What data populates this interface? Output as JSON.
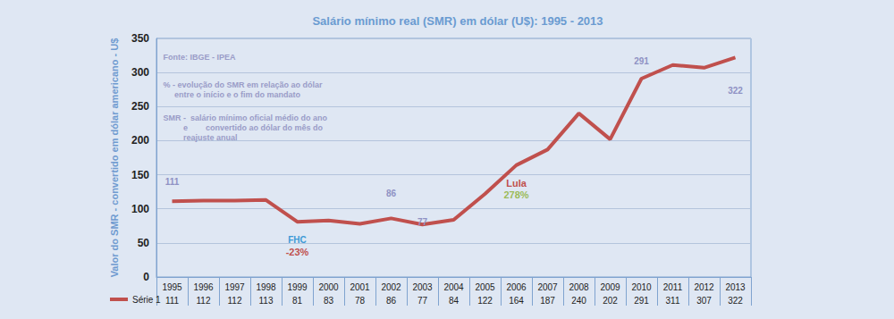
{
  "chart_data": {
    "type": "line",
    "title": "Salário mínimo real (SMR) em dólar (U$): 1995 - 2013",
    "y_label": "Valor do SMR - convertido em dólar americano - U$",
    "categories": [
      "1995",
      "1996",
      "1997",
      "1998",
      "1999",
      "2000",
      "2001",
      "2002",
      "2003",
      "2004",
      "2005",
      "2006",
      "2007",
      "2008",
      "2009",
      "2010",
      "2011",
      "2012",
      "2013"
    ],
    "series": [
      {
        "name": "Série 1",
        "color": "#c0504d",
        "marker": "none",
        "values": [
          111,
          112,
          112,
          113,
          81,
          83,
          78,
          86,
          77,
          84,
          122,
          164,
          187,
          240,
          202,
          291,
          311,
          307,
          322
        ]
      }
    ],
    "ylim": [
      0,
      350
    ],
    "yticks": [
      0,
      50,
      100,
      150,
      200,
      250,
      300,
      350
    ],
    "grid": true,
    "legend": "bottom-left",
    "annotations": [
      {
        "text": "Fonte: IBGE - IPEA",
        "x": "1995",
        "y": 323,
        "color": "#9a9cc8"
      },
      {
        "text": "% - evolução do SMR em relação ao dólar\n     entre o início e o fim do mandato",
        "x": "1995",
        "y": 275,
        "color": "#9a9cc8"
      },
      {
        "text": "SMR -  salário mínimo oficial médio do ano\n         e        convertido ao dólar do mês do\n         reajuste anual",
        "x": "1995",
        "y": 219,
        "color": "#9a9cc8"
      },
      {
        "text": "111",
        "x": "1995",
        "y": 140,
        "color": "#8f92c4"
      },
      {
        "text": "86",
        "x": "2002",
        "y": 122,
        "color": "#8f92c4"
      },
      {
        "text": "77",
        "x": "2003",
        "y": 80,
        "color": "#8f92c4"
      },
      {
        "text": "291",
        "x": "2010",
        "y": 317,
        "color": "#8f92c4"
      },
      {
        "text": "322",
        "x": "2013",
        "y": 273,
        "color": "#8f92c4"
      },
      {
        "text": "FHC",
        "x": "1999",
        "y": 55,
        "color": "#3d9ad6"
      },
      {
        "text": "-23%",
        "x": "1999",
        "y": 37,
        "color": "#c0504d"
      },
      {
        "text": "Lula",
        "x": "2006",
        "y": 137,
        "color": "#c0504d"
      },
      {
        "text": "278%",
        "x": "2006",
        "y": 120,
        "color": "#9bbb59"
      }
    ]
  }
}
